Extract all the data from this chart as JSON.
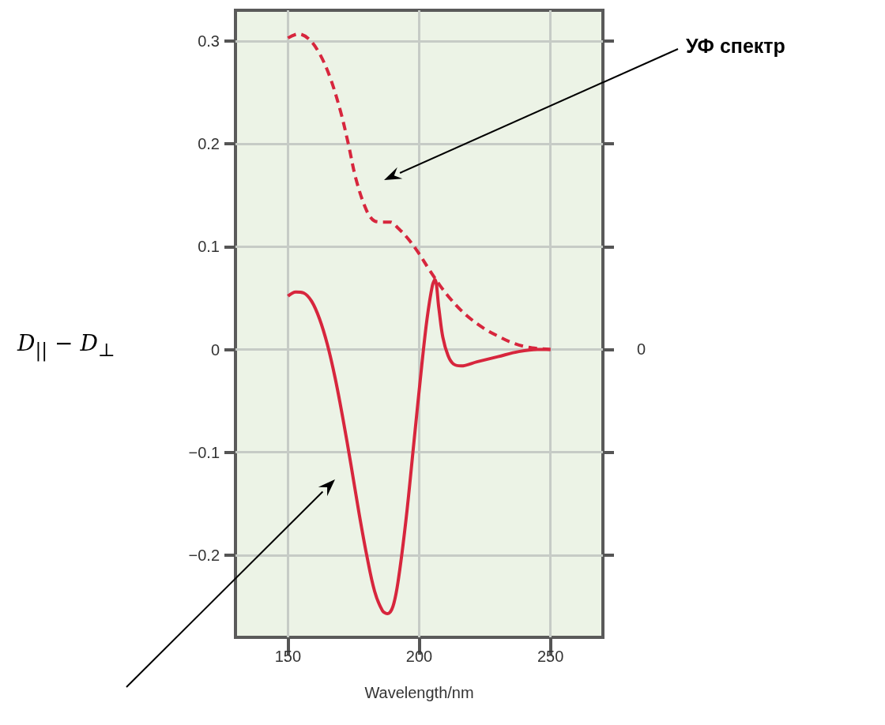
{
  "chart_data": {
    "type": "line",
    "xlabel": "Wavelength/nm",
    "ylabel": "D$_{||}$ − D$_{⊥}$",
    "annotations": [
      "УФ спектр",
      "0"
    ],
    "xlim": [
      130,
      270
    ],
    "xticks": [
      150,
      200,
      250
    ],
    "ylim": [
      -0.28,
      0.33
    ],
    "yticks": [
      {
        "value": -0.2,
        "label": "−0.2"
      },
      {
        "value": -0.1,
        "label": "−0.1"
      },
      0,
      0.1,
      0.2,
      0.3
    ],
    "grid": true,
    "series": [
      {
        "color": "#d7263d",
        "line_style": "dashed",
        "x": [
          150,
          154,
          158,
          162,
          166,
          170,
          173,
          176,
          180,
          183,
          186,
          189,
          192,
          196,
          200,
          204,
          208,
          212,
          216,
          220,
          225,
          230,
          235,
          240,
          245,
          250
        ],
        "values": [
          0.303,
          0.307,
          0.302,
          0.288,
          0.265,
          0.232,
          0.2,
          0.165,
          0.135,
          0.125,
          0.124,
          0.124,
          0.118,
          0.107,
          0.093,
          0.077,
          0.062,
          0.049,
          0.038,
          0.029,
          0.02,
          0.013,
          0.007,
          0.003,
          0.001,
          0
        ]
      },
      {
        "color": "#d7263d",
        "x": [
          150,
          153,
          156,
          159,
          162,
          165,
          168,
          171,
          174,
          177,
          180,
          183,
          186,
          188,
          190,
          192,
          195,
          198,
          201,
          203,
          205,
          206,
          207.5,
          209,
          211,
          213,
          216,
          222,
          230,
          238,
          245,
          250
        ],
        "values": [
          0.052,
          0.056,
          0.055,
          0.047,
          0.03,
          0.005,
          -0.028,
          -0.068,
          -0.112,
          -0.158,
          -0.2,
          -0.235,
          -0.254,
          -0.257,
          -0.25,
          -0.225,
          -0.165,
          -0.09,
          -0.015,
          0.03,
          0.062,
          0.068,
          0.04,
          0.012,
          -0.006,
          -0.014,
          -0.016,
          -0.012,
          -0.007,
          -0.002,
          0,
          0
        ]
      }
    ]
  }
}
